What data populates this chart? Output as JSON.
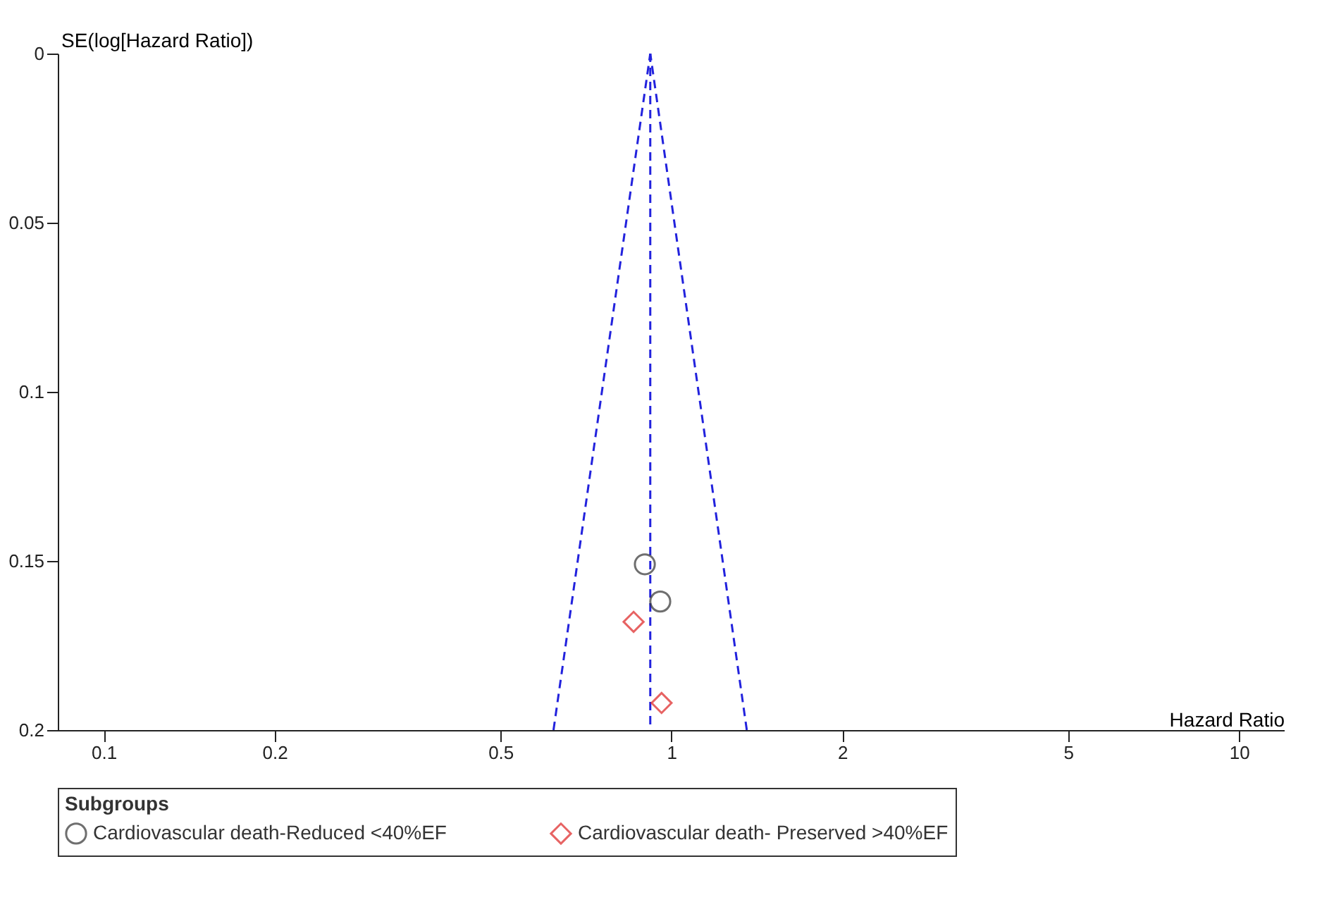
{
  "chart_data": {
    "type": "scatter",
    "xlabel": "Hazard Ratio",
    "ylabel": "SE(log[Hazard Ratio])",
    "legend_title": "Subgroups",
    "log": "x",
    "xlim": [
      0.083,
      12
    ],
    "xticks": [
      0.1,
      0.2,
      0.5,
      1,
      2,
      5,
      10
    ],
    "ylim": [
      0.2,
      0
    ],
    "yticks": [
      0,
      0.05,
      0.1,
      0.15,
      0.2
    ],
    "grid": false,
    "legend": "bottom",
    "series": [
      {
        "name": "Cardiovascular death-Reduced <40%EF",
        "color": "#333333",
        "marker": "circle",
        "x": [
          0.898,
          0.956
        ],
        "values": [
          0.151,
          0.162
        ]
      },
      {
        "name": "Cardiovascular death- Preserved >40%EF",
        "color": "#dd2222",
        "marker": "diamond",
        "x": [
          0.858,
          0.961
        ],
        "values": [
          0.168,
          0.192
        ]
      },
      {
        "type": "line",
        "color": "#2222dd",
        "line_style": "dashed",
        "x": [
          0.62,
          0.918
        ],
        "values": [
          0.2,
          0
        ]
      },
      {
        "type": "line",
        "color": "#2222dd",
        "line_style": "dashed",
        "x": [
          1.358,
          0.918
        ],
        "values": [
          0.2,
          0
        ]
      }
    ],
    "ref_lines": [
      {
        "axis": "x",
        "value": 0.918,
        "color": "#2222dd",
        "line_style": "dashed"
      }
    ]
  }
}
